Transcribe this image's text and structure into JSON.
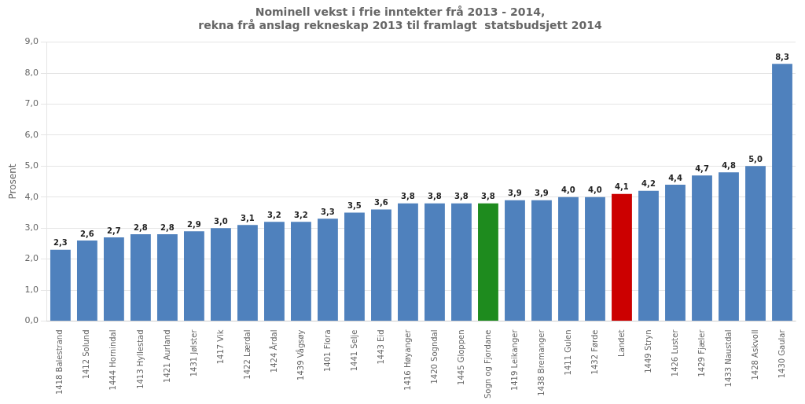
{
  "chart_data": {
    "type": "bar",
    "title": "Nominell vekst i frie inntekter frå 2013 - 2014,\nrekna frå anslag rekneskap 2013 til framlagt  statsbudsjett 2014",
    "ylabel": "Prosent",
    "categories": [
      "1418 Balestrand",
      "1412 Solund",
      "1444 Hornindal",
      "1413 Hyllestad",
      "1421 Aurland",
      "1431 Jølster",
      "1417 Vik",
      "1422 Lærdal",
      "1424 Årdal",
      "1439 Vågsøy",
      "1401 Flora",
      "1441 Selje",
      "1443 Eid",
      "1416 Høyanger",
      "1420 Sogndal",
      "1445 Gloppen",
      "Sogn og Fjordane",
      "1419 Leikanger",
      "1438 Bremanger",
      "1411 Gulen",
      "1432 Førde",
      "Landet",
      "1449 Stryn",
      "1426 Luster",
      "1429 Fjæler",
      "1433 Naustdal",
      "1428 Askvoll",
      "1430 Gaular"
    ],
    "values": [
      2.3,
      2.6,
      2.7,
      2.8,
      2.8,
      2.9,
      3.0,
      3.1,
      3.2,
      3.2,
      3.3,
      3.5,
      3.6,
      3.8,
      3.8,
      3.8,
      3.8,
      3.9,
      3.9,
      4.0,
      4.0,
      4.1,
      4.2,
      4.4,
      4.7,
      4.8,
      5.0,
      8.3
    ],
    "value_labels": [
      "2,3",
      "2,6",
      "2,7",
      "2,8",
      "2,8",
      "2,9",
      "3,0",
      "3,1",
      "3,2",
      "3,2",
      "3,3",
      "3,5",
      "3,6",
      "3,8",
      "3,8",
      "3,8",
      "3,8",
      "3,9",
      "3,9",
      "4,0",
      "4,0",
      "4,1",
      "4,2",
      "4,4",
      "4,7",
      "4,8",
      "5,0",
      "8,3"
    ],
    "data_labels": true,
    "colors": [
      "#4f81bd",
      "#4f81bd",
      "#4f81bd",
      "#4f81bd",
      "#4f81bd",
      "#4f81bd",
      "#4f81bd",
      "#4f81bd",
      "#4f81bd",
      "#4f81bd",
      "#4f81bd",
      "#4f81bd",
      "#4f81bd",
      "#4f81bd",
      "#4f81bd",
      "#4f81bd",
      "#1e8b1e",
      "#4f81bd",
      "#4f81bd",
      "#4f81bd",
      "#4f81bd",
      "#cc0000",
      "#4f81bd",
      "#4f81bd",
      "#4f81bd",
      "#4f81bd",
      "#4f81bd",
      "#4f81bd"
    ],
    "ylim": [
      0,
      9.0
    ],
    "yticks": [
      {
        "value": 0.0,
        "label": "0,0"
      },
      {
        "value": 1.0,
        "label": "1,0"
      },
      {
        "value": 2.0,
        "label": "2,0"
      },
      {
        "value": 3.0,
        "label": "3,0"
      },
      {
        "value": 4.0,
        "label": "4,0"
      },
      {
        "value": 5.0,
        "label": "5,0"
      },
      {
        "value": 6.0,
        "label": "6,0"
      },
      {
        "value": 7.0,
        "label": "7,0"
      },
      {
        "value": 8.0,
        "label": "8,0"
      },
      {
        "value": 9.0,
        "label": "9,0"
      }
    ],
    "grid": true
  }
}
